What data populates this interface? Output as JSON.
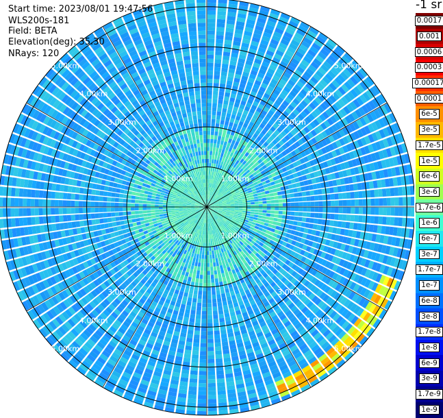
{
  "info": {
    "start_time": "Start time: 2023/08/01 19:47:56",
    "instrument": "WLS200s-181",
    "field": "Field: BETA",
    "elevation": "Elevation(deg): 35.30",
    "nrays": "NRays: 120"
  },
  "colorbar": {
    "title": "-1 sr",
    "labels": [
      "0.0017",
      "0.001",
      "0.0006",
      "0.0003",
      "0.00017",
      "0.0001",
      "6e-5",
      "3e-5",
      "1.7e-5",
      "1e-5",
      "6e-6",
      "3e-6",
      "1.7e-6",
      "1e-6",
      "6e-7",
      "3e-7",
      "1.7e-7",
      "1e-7",
      "6e-8",
      "3e-8",
      "1.7e-8",
      "1e-8",
      "6e-9",
      "3e-9",
      "1.7e-9",
      "1e-9"
    ],
    "colors": [
      "#800000",
      "#b00000",
      "#d80000",
      "#f80000",
      "#ff3000",
      "#ff6000",
      "#ff9000",
      "#ffb800",
      "#ffe000",
      "#ffff00",
      "#d0ff20",
      "#a0ff50",
      "#70ffa0",
      "#40ffd0",
      "#20e8f0",
      "#00d0ff",
      "#00b0ff",
      "#0090ff",
      "#0070ff",
      "#0050ff",
      "#0030ff",
      "#0010f0",
      "#0000d0",
      "#0000b0",
      "#000090",
      "#000070"
    ]
  },
  "chart_data": {
    "type": "heatmap",
    "projection": "polar PPI",
    "field": "BETA",
    "nrays": 120,
    "range_rings_km": [
      1,
      2,
      3,
      4,
      5
    ],
    "max_range_km": 5.2,
    "ring_labels": [
      "1.00km",
      "2.00km",
      "3.00km",
      "4.00km",
      "5.00km"
    ],
    "azimuth_lines_deg": [
      0,
      30,
      60,
      90,
      120,
      150,
      180,
      210,
      240,
      270,
      300,
      330
    ],
    "values_summary": {
      "background": "1e-7 to 1e-8 over most range gates",
      "near_range_band_km": [
        1.0,
        2.0
      ],
      "near_range_level": "1.7e-7 to 3e-7",
      "cloud_echo_range_km": 4.9,
      "cloud_echo_azimuth_deg": [
        110,
        160
      ],
      "cloud_echo_level": "6e-6 to 3e-5"
    }
  }
}
